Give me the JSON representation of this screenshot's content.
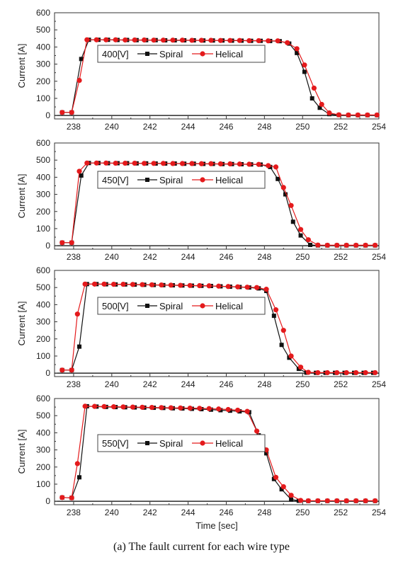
{
  "caption": "(a)  The  fault  current  for  each  wire  type",
  "colors": {
    "spiral": "#111111",
    "helical": "#e41a1c",
    "axis": "#333333"
  },
  "chart_data": [
    {
      "type": "line",
      "legend_title": "400[V]",
      "ylabel": "Current [A]",
      "xlabel": "",
      "xlim": [
        237,
        254
      ],
      "ylim": [
        -20,
        600
      ],
      "xticks": [
        238,
        240,
        242,
        244,
        246,
        248,
        250,
        252,
        254
      ],
      "yticks": [
        0,
        100,
        200,
        300,
        400,
        500,
        600
      ],
      "legend_position": "center",
      "series": [
        {
          "name": "Spiral",
          "marker": "square",
          "x": [
            237.4,
            237.9,
            238.4,
            238.8,
            239.3,
            239.8,
            240.3,
            240.8,
            241.3,
            241.8,
            242.3,
            242.8,
            243.3,
            243.8,
            244.3,
            244.8,
            245.3,
            245.8,
            246.3,
            246.8,
            247.3,
            247.8,
            248.3,
            248.8,
            249.3,
            249.7,
            250.1,
            250.5,
            250.9,
            251.4,
            251.9,
            252.4,
            252.9,
            253.4,
            253.9
          ],
          "y": [
            18,
            18,
            330,
            442,
            442,
            442,
            441,
            441,
            440,
            440,
            440,
            439,
            439,
            439,
            439,
            438,
            438,
            438,
            437,
            437,
            436,
            436,
            435,
            434,
            420,
            365,
            255,
            100,
            45,
            8,
            3,
            2,
            2,
            2,
            2
          ]
        },
        {
          "name": "Helical",
          "marker": "circle",
          "x": [
            237.4,
            237.9,
            238.3,
            238.7,
            239.2,
            239.7,
            240.2,
            240.7,
            241.2,
            241.7,
            242.2,
            242.7,
            243.2,
            243.7,
            244.2,
            244.7,
            245.2,
            245.7,
            246.2,
            246.7,
            247.2,
            247.7,
            248.2,
            248.7,
            249.2,
            249.7,
            250.1,
            250.6,
            251.0,
            251.4,
            251.9,
            252.4,
            252.9,
            253.4,
            253.9
          ],
          "y": [
            18,
            18,
            205,
            442,
            442,
            442,
            442,
            441,
            441,
            441,
            440,
            440,
            440,
            440,
            439,
            439,
            439,
            438,
            438,
            438,
            437,
            437,
            436,
            436,
            425,
            390,
            295,
            160,
            65,
            15,
            4,
            3,
            3,
            3,
            3
          ]
        }
      ]
    },
    {
      "type": "line",
      "legend_title": "450[V]",
      "ylabel": "Current [A]",
      "xlabel": "",
      "xlim": [
        237,
        254
      ],
      "ylim": [
        -20,
        600
      ],
      "xticks": [
        238,
        240,
        242,
        244,
        246,
        248,
        250,
        252,
        254
      ],
      "yticks": [
        0,
        100,
        200,
        300,
        400,
        500,
        600
      ],
      "legend_position": "center",
      "series": [
        {
          "name": "Spiral",
          "marker": "square",
          "x": [
            237.4,
            237.9,
            238.4,
            238.8,
            239.3,
            239.8,
            240.3,
            240.8,
            241.3,
            241.8,
            242.3,
            242.8,
            243.3,
            243.8,
            244.3,
            244.8,
            245.3,
            245.8,
            246.3,
            246.8,
            247.3,
            247.8,
            248.3,
            248.7,
            249.1,
            249.5,
            249.9,
            250.4,
            250.8,
            251.3,
            251.8,
            252.3,
            252.8,
            253.3,
            253.8
          ],
          "y": [
            18,
            18,
            410,
            483,
            483,
            482,
            482,
            482,
            481,
            481,
            480,
            480,
            480,
            479,
            479,
            478,
            478,
            477,
            477,
            476,
            475,
            474,
            460,
            390,
            300,
            140,
            60,
            5,
            2,
            2,
            2,
            2,
            2,
            2,
            2
          ]
        },
        {
          "name": "Helical",
          "marker": "circle",
          "x": [
            237.4,
            237.9,
            238.3,
            238.7,
            239.2,
            239.7,
            240.2,
            240.7,
            241.2,
            241.7,
            242.2,
            242.7,
            243.2,
            243.7,
            244.2,
            244.7,
            245.2,
            245.7,
            246.2,
            246.7,
            247.2,
            247.7,
            248.2,
            248.6,
            249.0,
            249.4,
            249.9,
            250.3,
            250.8,
            251.3,
            251.8,
            252.3,
            252.8,
            253.3,
            253.8
          ],
          "y": [
            18,
            18,
            435,
            483,
            483,
            483,
            482,
            482,
            482,
            481,
            481,
            481,
            480,
            480,
            480,
            479,
            479,
            478,
            478,
            477,
            476,
            475,
            468,
            460,
            340,
            235,
            95,
            35,
            4,
            3,
            3,
            3,
            3,
            3,
            3
          ]
        }
      ]
    },
    {
      "type": "line",
      "legend_title": "500[V]",
      "ylabel": "Current [A]",
      "xlabel": "",
      "xlim": [
        237,
        254
      ],
      "ylim": [
        -20,
        600
      ],
      "xticks": [
        238,
        240,
        242,
        244,
        246,
        248,
        250,
        252,
        254
      ],
      "yticks": [
        0,
        100,
        200,
        300,
        400,
        500,
        600
      ],
      "legend_position": "center",
      "series": [
        {
          "name": "Spiral",
          "marker": "square",
          "x": [
            237.4,
            237.9,
            238.3,
            238.7,
            239.2,
            239.7,
            240.2,
            240.7,
            241.2,
            241.7,
            242.2,
            242.7,
            243.2,
            243.7,
            244.2,
            244.7,
            245.2,
            245.7,
            246.2,
            246.7,
            247.2,
            247.7,
            248.1,
            248.5,
            248.9,
            249.3,
            249.8,
            250.2,
            250.7,
            251.2,
            251.7,
            252.2,
            252.7,
            253.2,
            253.7
          ],
          "y": [
            18,
            18,
            155,
            520,
            520,
            519,
            518,
            518,
            517,
            516,
            515,
            514,
            513,
            512,
            511,
            510,
            509,
            507,
            505,
            503,
            500,
            495,
            480,
            335,
            165,
            90,
            25,
            3,
            2,
            2,
            2,
            2,
            2,
            2,
            2
          ]
        },
        {
          "name": "Helical",
          "marker": "circle",
          "x": [
            237.4,
            237.9,
            238.2,
            238.6,
            239.1,
            239.6,
            240.1,
            240.6,
            241.1,
            241.6,
            242.1,
            242.6,
            243.1,
            243.6,
            244.1,
            244.6,
            245.1,
            245.6,
            246.1,
            246.6,
            247.1,
            247.6,
            248.1,
            248.6,
            249.0,
            249.4,
            249.9,
            250.3,
            250.8,
            251.3,
            251.8,
            252.3,
            252.8,
            253.3,
            253.8
          ],
          "y": [
            18,
            18,
            345,
            520,
            520,
            520,
            519,
            519,
            518,
            517,
            516,
            515,
            514,
            513,
            512,
            511,
            510,
            508,
            506,
            504,
            502,
            500,
            490,
            370,
            250,
            100,
            35,
            5,
            3,
            3,
            3,
            3,
            3,
            3,
            3
          ]
        }
      ]
    },
    {
      "type": "line",
      "legend_title": "550[V]",
      "ylabel": "Current [A]",
      "xlabel": "Time [sec]",
      "xlim": [
        237,
        254
      ],
      "ylim": [
        -20,
        600
      ],
      "xticks": [
        238,
        240,
        242,
        244,
        246,
        248,
        250,
        252,
        254
      ],
      "yticks": [
        0,
        100,
        200,
        300,
        400,
        500,
        600
      ],
      "legend_position": "center",
      "series": [
        {
          "name": "Spiral",
          "marker": "square",
          "x": [
            237.4,
            237.9,
            238.3,
            238.7,
            239.2,
            239.7,
            240.2,
            240.7,
            241.2,
            241.7,
            242.2,
            242.7,
            243.2,
            243.7,
            244.2,
            244.7,
            245.2,
            245.7,
            246.2,
            246.7,
            247.2,
            247.7,
            248.1,
            248.5,
            248.9,
            249.4,
            249.8,
            250.3,
            250.8,
            251.3,
            251.8,
            252.3,
            252.8,
            253.3,
            253.8
          ],
          "y": [
            22,
            20,
            140,
            555,
            553,
            551,
            550,
            549,
            548,
            547,
            546,
            545,
            543,
            542,
            540,
            538,
            535,
            532,
            529,
            525,
            520,
            385,
            280,
            130,
            70,
            10,
            3,
            2,
            2,
            2,
            2,
            2,
            2,
            2,
            2
          ]
        },
        {
          "name": "Helical",
          "marker": "circle",
          "x": [
            237.4,
            237.9,
            238.2,
            238.6,
            239.1,
            239.6,
            240.1,
            240.6,
            241.1,
            241.6,
            242.1,
            242.6,
            243.1,
            243.6,
            244.1,
            244.6,
            245.1,
            245.6,
            246.1,
            246.6,
            247.1,
            247.6,
            248.1,
            248.6,
            249.0,
            249.4,
            249.9,
            250.3,
            250.8,
            251.3,
            251.8,
            252.3,
            252.8,
            253.3,
            253.8
          ],
          "y": [
            22,
            20,
            220,
            555,
            554,
            553,
            552,
            551,
            550,
            549,
            548,
            547,
            546,
            545,
            544,
            543,
            541,
            539,
            536,
            532,
            525,
            410,
            300,
            140,
            85,
            35,
            5,
            3,
            3,
            3,
            3,
            3,
            3,
            3,
            3
          ]
        }
      ]
    }
  ]
}
